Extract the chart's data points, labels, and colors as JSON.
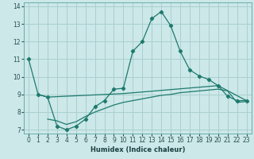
{
  "xlabel": "Humidex (Indice chaleur)",
  "background_color": "#cce8e8",
  "grid_color": "#aacfcf",
  "line_color": "#1e7a6e",
  "xlim": [
    -0.5,
    23.5
  ],
  "ylim": [
    6.8,
    14.2
  ],
  "xticks": [
    0,
    1,
    2,
    3,
    4,
    5,
    6,
    7,
    8,
    9,
    10,
    11,
    12,
    13,
    14,
    15,
    16,
    17,
    18,
    19,
    20,
    21,
    22,
    23
  ],
  "yticks": [
    7,
    8,
    9,
    10,
    11,
    12,
    13,
    14
  ],
  "series1_x": [
    0,
    1,
    2,
    3,
    4,
    5,
    6,
    7,
    8,
    9,
    10,
    11,
    12,
    13,
    14,
    15,
    16,
    17,
    18,
    19,
    20,
    21,
    22,
    23
  ],
  "series1_y": [
    11.0,
    9.0,
    8.85,
    7.2,
    7.0,
    7.2,
    7.6,
    8.3,
    8.65,
    9.3,
    9.35,
    11.45,
    12.0,
    13.3,
    13.7,
    12.9,
    11.45,
    10.4,
    10.05,
    9.85,
    9.5,
    8.9,
    8.65,
    8.65
  ],
  "series2_x": [
    1,
    2,
    10,
    20,
    23
  ],
  "series2_y": [
    9.0,
    8.85,
    9.05,
    9.5,
    8.65
  ],
  "series3_x": [
    2,
    3,
    4,
    5,
    6,
    7,
    8,
    9,
    10,
    11,
    12,
    13,
    14,
    15,
    16,
    17,
    18,
    19,
    20,
    21,
    22,
    23
  ],
  "series3_y": [
    7.6,
    7.5,
    7.3,
    7.45,
    7.75,
    8.0,
    8.2,
    8.4,
    8.55,
    8.65,
    8.75,
    8.85,
    8.95,
    9.0,
    9.1,
    9.15,
    9.2,
    9.25,
    9.3,
    9.2,
    8.55,
    8.6
  ],
  "xlabel_fontsize": 6,
  "tick_fontsize": 5.5
}
